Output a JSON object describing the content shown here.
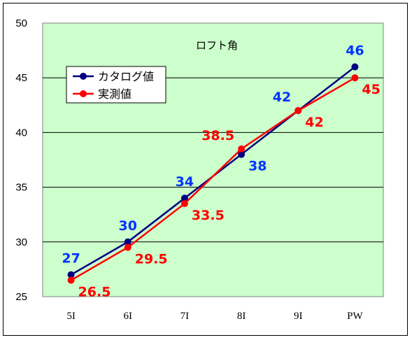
{
  "chart_data": {
    "type": "line",
    "title": "ロフト角",
    "xlabel": "",
    "ylabel": "",
    "categories": [
      "5I",
      "6I",
      "7I",
      "8I",
      "9I",
      "PW"
    ],
    "ylim": [
      25,
      50
    ],
    "yticks": [
      25,
      30,
      35,
      40,
      45,
      50
    ],
    "grid": true,
    "legend_position": "top-left",
    "plot_background": "#ccffcc",
    "series": [
      {
        "name": "カタログ値",
        "color": "#000080",
        "label_color": "#0033ff",
        "values": [
          27,
          30,
          34,
          38,
          42,
          46
        ],
        "labels": [
          "27",
          "30",
          "34",
          "38",
          "42",
          "46"
        ],
        "label_pos": [
          "above",
          "above",
          "above",
          "below-right",
          "above-left",
          "above"
        ]
      },
      {
        "name": "実測値",
        "color": "#ff0000",
        "label_color": "#ff0000",
        "values": [
          26.5,
          29.5,
          33.5,
          38.5,
          42,
          45
        ],
        "labels": [
          "26.5",
          "29.5",
          "33.5",
          "38.5",
          "42",
          "45"
        ],
        "label_pos": [
          "below-right",
          "below-right",
          "below-right",
          "above-left",
          "below-right",
          "below-right"
        ]
      }
    ]
  }
}
